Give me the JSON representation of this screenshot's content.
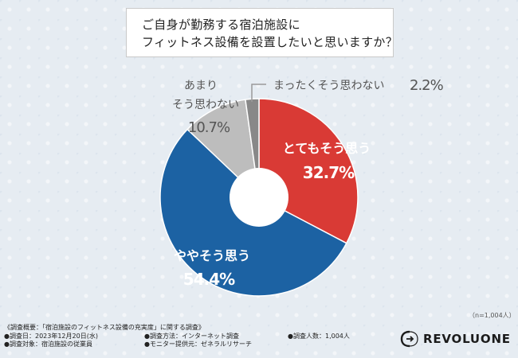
{
  "title": {
    "line1": "ご自身が勤務する宿泊施設に",
    "line2": "フィットネス設備を設置したいと思いますか？"
  },
  "chart_data": {
    "type": "pie",
    "donut": true,
    "slices": [
      {
        "label": "とてもそう思う",
        "value": 32.7,
        "value_label": "32.7%",
        "color": "#d93a35"
      },
      {
        "label": "ややそう思う",
        "value": 54.4,
        "value_label": "54.4%",
        "color": "#1c62a3"
      },
      {
        "label": "あまりそう思わない",
        "value": 10.7,
        "value_label": "10.7%",
        "color": "#bdbdbd"
      },
      {
        "label": "まったくそう思わない",
        "value": 2.2,
        "value_label": "2.2%",
        "color": "#888888"
      }
    ]
  },
  "slice_text": {
    "s0_label": "とてもそう思う",
    "s0_value": "32.7%",
    "s1_label": "ややそう思う",
    "s1_value": "54.4%",
    "s2_label_line1": "あまり",
    "s2_label_line2": "そう思わない",
    "s2_value": "10.7%",
    "s3_label": "まったくそう思わない",
    "s3_value": "2.2%"
  },
  "sample_size": "（n=1,004人）",
  "footnotes": {
    "overview": "《調査概要：「宿泊施設のフィットネス設備の充実度」に関する調査》",
    "date": "●調査日：2023年12月20日(水)",
    "method": "●調査方法：インターネット調査",
    "respondents": "●調査人数：1,004人",
    "target": "●調査対象：宿泊施設の従業員",
    "provider": "●モニター提供元：ゼネラルリサーチ"
  },
  "logo": {
    "text": "REVOLUONE"
  },
  "colors": {
    "red": "#d93a35",
    "blue": "#1c62a3",
    "light_gray": "#bdbdbd",
    "dark_gray": "#888888"
  }
}
